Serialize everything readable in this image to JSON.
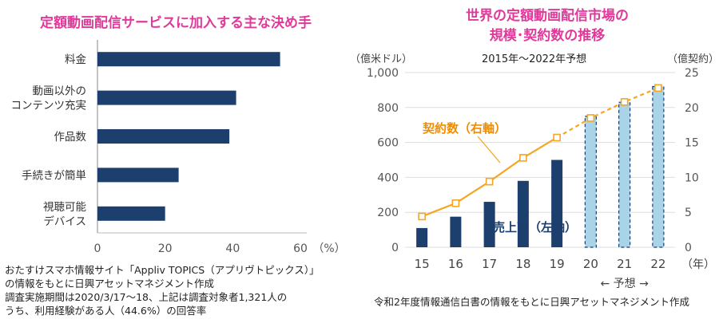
{
  "left": {
    "title": "定額動画配信サービスに加入する主な決め手",
    "notes": [
      "おたすけスマホ情報サイト「Appliv TOPICS（アプリヴトピックス）」",
      "の情報をもとに日興アセットマネジメント作成",
      "調査実施期間は2020/3/17～18、上記は調査対象者1,321人の",
      "うち、利用経験がある人（44.6%）の回答率"
    ]
  },
  "right": {
    "title_lines": [
      "世界の定額動画配信市場の",
      "規模･契約数の推移"
    ],
    "notes": [
      "令和2年度情報通信白書の情報をもとに日興アセットマネジメント作成"
    ]
  },
  "chart_data": [
    {
      "type": "bar",
      "orientation": "horizontal",
      "title": "定額動画配信サービスに加入する主な決め手",
      "categories": [
        [
          "料金"
        ],
        [
          "動画以外の",
          "コンテンツ充実"
        ],
        [
          "作品数"
        ],
        [
          "手続きが簡単"
        ],
        [
          "視聴可能",
          "デバイス"
        ]
      ],
      "values": [
        54,
        41,
        39,
        24,
        20
      ],
      "xlim": [
        0,
        60
      ],
      "xticks": [
        "0",
        "20",
        "40",
        "60"
      ],
      "xunit": "（%）",
      "color": "#1c3f6e"
    },
    {
      "type": "bar+line",
      "title": "世界の定額動画配信市場の規模･契約数の推移",
      "subtitle": "2015年～2022年予想",
      "categories": [
        "15",
        "16",
        "17",
        "18",
        "19",
        "20",
        "21",
        "22"
      ],
      "x_unit": "（年）",
      "forecast_label": "← 予想 →",
      "forecast_from_index": 5,
      "left_axis": {
        "label": "（億米ドル）",
        "ylim": [
          0,
          1000
        ],
        "ticks": [
          "0",
          "200",
          "400",
          "600",
          "800",
          "1,000"
        ]
      },
      "right_axis": {
        "label": "（億契約）",
        "ylim": [
          0,
          25
        ],
        "ticks": [
          "0",
          "5",
          "10",
          "15",
          "20",
          "25"
        ]
      },
      "series": [
        {
          "name": "売上高（左軸）",
          "type": "bar",
          "axis": "left",
          "values": [
            110,
            175,
            260,
            380,
            500,
            750,
            830,
            920
          ],
          "color": "#1c3f6e",
          "forecast_color": "#a9d4e8"
        },
        {
          "name": "契約数（右軸）",
          "type": "line",
          "axis": "right",
          "values": [
            4.4,
            6.3,
            9.4,
            12.8,
            15.7,
            18.5,
            20.8,
            22.8
          ],
          "color": "#f5a623"
        }
      ]
    }
  ]
}
